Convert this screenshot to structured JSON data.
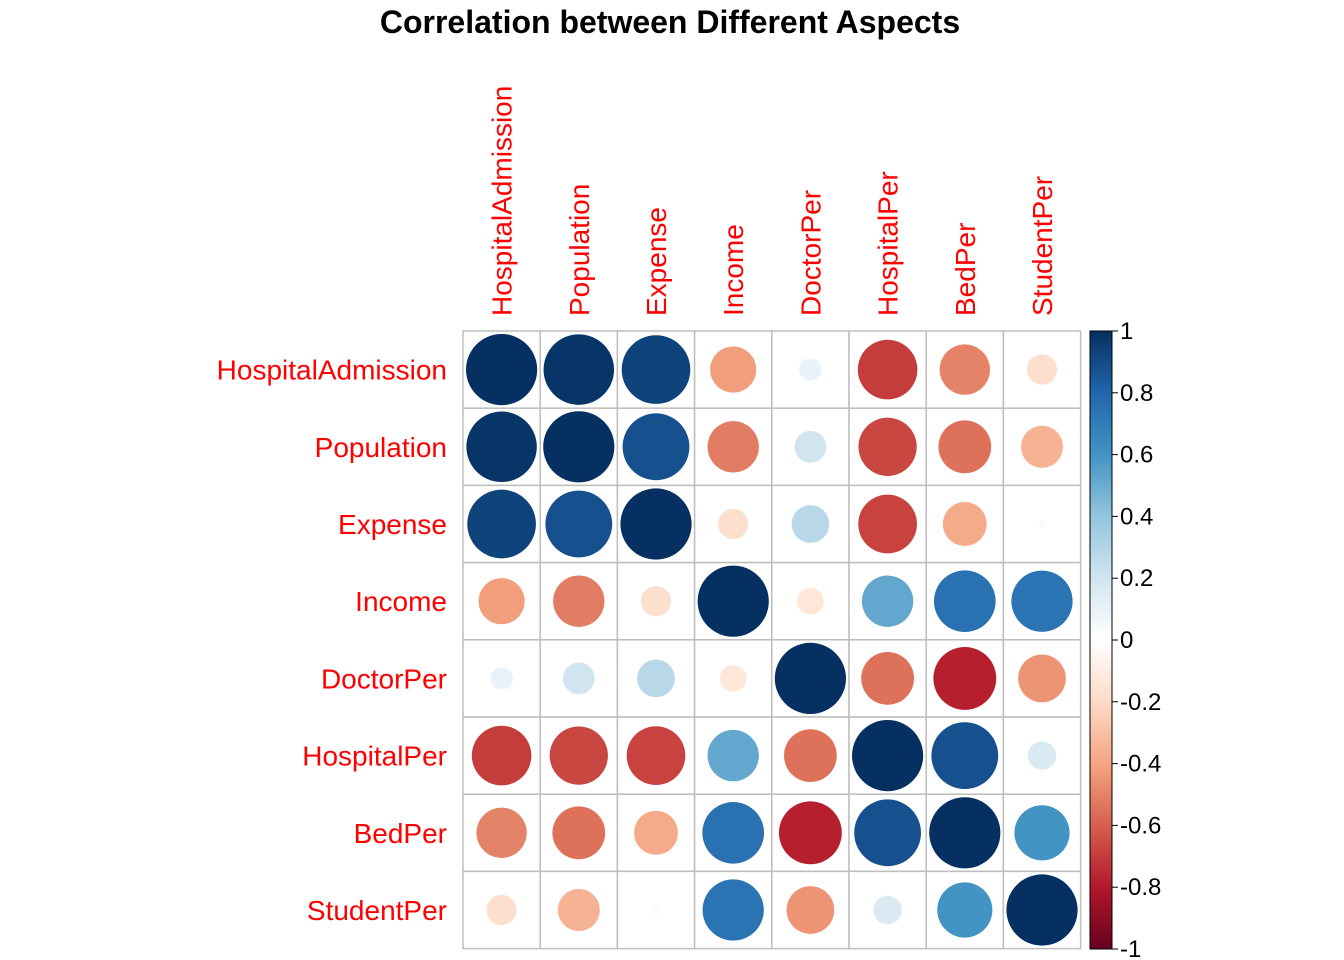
{
  "chart_data": {
    "type": "heatmap",
    "style": "circle",
    "title": "Correlation between Different Aspects",
    "variables": [
      "HospitalAdmission",
      "Population",
      "Expense",
      "Income",
      "DoctorPer",
      "HospitalPer",
      "BedPer",
      "StudentPer"
    ],
    "matrix": [
      [
        1.0,
        0.98,
        0.93,
        -0.42,
        0.1,
        -0.7,
        -0.5,
        -0.18
      ],
      [
        0.98,
        1.0,
        0.88,
        -0.52,
        0.2,
        -0.67,
        -0.55,
        -0.35
      ],
      [
        0.93,
        0.88,
        1.0,
        -0.18,
        0.28,
        -0.68,
        -0.38,
        -0.02
      ],
      [
        -0.42,
        -0.52,
        -0.18,
        1.0,
        -0.14,
        0.52,
        0.75,
        0.74
      ],
      [
        0.1,
        0.2,
        0.28,
        -0.14,
        1.0,
        -0.55,
        -0.78,
        -0.45
      ],
      [
        -0.7,
        -0.67,
        -0.68,
        0.52,
        -0.55,
        1.0,
        0.88,
        0.16
      ],
      [
        -0.5,
        -0.55,
        -0.38,
        0.75,
        -0.78,
        0.88,
        1.0,
        0.6
      ],
      [
        -0.18,
        -0.35,
        -0.02,
        0.74,
        -0.45,
        0.16,
        0.6,
        1.0
      ]
    ],
    "colorbar": {
      "range": [
        -1,
        1
      ],
      "ticks": [
        "-1",
        "-0.8",
        "-0.6",
        "-0.4",
        "-0.2",
        "0",
        "0.2",
        "0.4",
        "0.6",
        "0.8",
        "1"
      ],
      "colors": [
        "#67001F",
        "#B2182B",
        "#D6604D",
        "#F4A582",
        "#FDDBC7",
        "#FFFFFF",
        "#D1E5F0",
        "#92C5DE",
        "#4393C3",
        "#2166AC",
        "#053061"
      ]
    },
    "label_color": "#FF0000",
    "grid_color": "#BEBEBE"
  }
}
